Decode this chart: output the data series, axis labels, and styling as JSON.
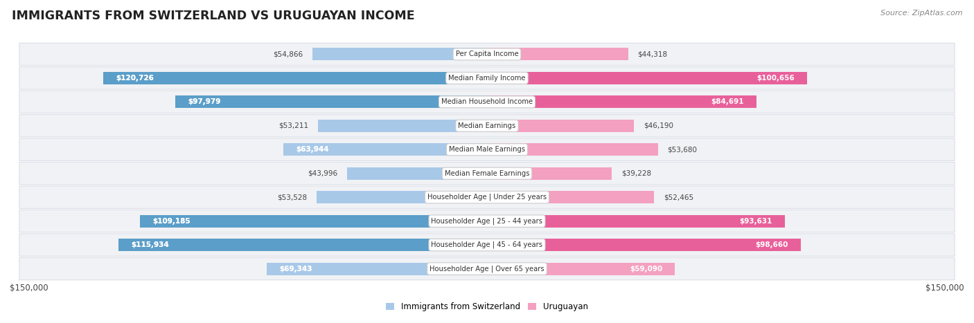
{
  "title": "IMMIGRANTS FROM SWITZERLAND VS URUGUAYAN INCOME",
  "source": "Source: ZipAtlas.com",
  "categories": [
    "Per Capita Income",
    "Median Family Income",
    "Median Household Income",
    "Median Earnings",
    "Median Male Earnings",
    "Median Female Earnings",
    "Householder Age | Under 25 years",
    "Householder Age | 25 - 44 years",
    "Householder Age | 45 - 64 years",
    "Householder Age | Over 65 years"
  ],
  "swiss_values": [
    54866,
    120726,
    97979,
    53211,
    63944,
    43996,
    53528,
    109185,
    115934,
    69343
  ],
  "uruguayan_values": [
    44318,
    100656,
    84691,
    46190,
    53680,
    39228,
    52465,
    93631,
    98660,
    59090
  ],
  "swiss_labels": [
    "$54,866",
    "$120,726",
    "$97,979",
    "$53,211",
    "$63,944",
    "$43,996",
    "$53,528",
    "$109,185",
    "$115,934",
    "$69,343"
  ],
  "uruguayan_labels": [
    "$44,318",
    "$100,656",
    "$84,691",
    "$46,190",
    "$53,680",
    "$39,228",
    "$52,465",
    "$93,631",
    "$98,660",
    "$59,090"
  ],
  "swiss_color_light": "#a8c8e8",
  "swiss_color_dark": "#5b9ec9",
  "uruguayan_color_light": "#f4a0c0",
  "uruguayan_color_dark": "#e8609a",
  "swiss_threshold": 70000,
  "uruguayan_threshold": 70000,
  "max_value": 150000,
  "bar_height": 0.52,
  "background_color": "#ffffff",
  "row_bg_color": "#f0f2f5",
  "row_border_color": "#d8dce4",
  "legend_swiss": "Immigrants from Switzerland",
  "legend_uruguayan": "Uruguayan",
  "x_label_left": "$150,000",
  "x_label_right": "$150,000"
}
